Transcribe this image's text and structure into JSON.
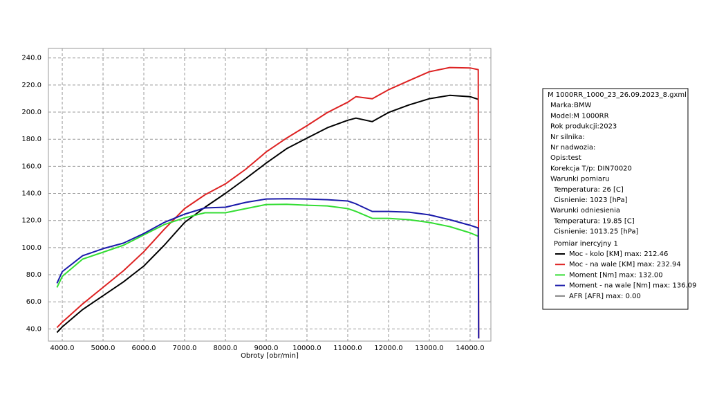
{
  "chart_data": {
    "type": "line",
    "x_label": "Obroty [obr/min]",
    "x": [
      3870,
      4000,
      4500,
      5000,
      5500,
      6000,
      6500,
      7000,
      7500,
      8000,
      8500,
      9000,
      9500,
      10000,
      10500,
      11000,
      11200,
      11600,
      12000,
      12500,
      13000,
      13500,
      14000,
      14200,
      14210
    ],
    "series": [
      {
        "name": "Moc - kolo [KM] max: 212.46",
        "color": "#000000",
        "values": [
          37.4,
          41.5,
          54.3,
          64.5,
          74.7,
          86.4,
          101.7,
          118.6,
          129.8,
          140,
          151,
          162.4,
          173,
          180.8,
          188.5,
          194,
          195.6,
          193,
          199.7,
          205.3,
          209.9,
          212.4,
          211.4,
          209.4,
          null
        ]
      },
      {
        "name": "Moc - na wale [KM] max: 232.94",
        "color": "#dd2222",
        "values": [
          41,
          45,
          58.4,
          70.6,
          82.9,
          97,
          113.5,
          128.8,
          139,
          147,
          157.9,
          170.6,
          180.8,
          190,
          199.7,
          207.3,
          211.4,
          209.9,
          216.5,
          223.2,
          229.8,
          232.9,
          232.6,
          231.4,
          33
        ]
      },
      {
        "name": "Moment [Nm] max: 132.00",
        "color": "#33dd33",
        "values": [
          70.6,
          78.8,
          91.5,
          96.6,
          101.7,
          109.4,
          117,
          122,
          125.7,
          125.7,
          128.8,
          131.8,
          132,
          131.3,
          130.8,
          128.8,
          126.7,
          121.6,
          121.6,
          120.6,
          118.6,
          115.5,
          110.9,
          108.4,
          null
        ]
      },
      {
        "name": "Moment - na wale [Nm] max: 136.09",
        "color": "#1a1aaa",
        "values": [
          73.7,
          82.3,
          94,
          99.2,
          103.3,
          110.4,
          118.6,
          124.7,
          129.3,
          129.8,
          133.4,
          135.9,
          136.1,
          135.9,
          135.4,
          134.4,
          132.3,
          126.7,
          126.7,
          126.2,
          124.2,
          120.6,
          116.5,
          114.5,
          33
        ]
      },
      {
        "name": "AFR [AFR] max: 0.00",
        "color": "#808080",
        "values": [
          null,
          null,
          null,
          null,
          null,
          null,
          null,
          null,
          null,
          null,
          null,
          null,
          null,
          null,
          null,
          null,
          null,
          null,
          null,
          null,
          null,
          null,
          null,
          null,
          null
        ]
      }
    ],
    "xlim": [
      3660,
      14510
    ],
    "ylim": [
      31,
      247
    ],
    "xticks": [
      {
        "value": 4000,
        "label": "4000.0"
      },
      {
        "value": 5000,
        "label": "5000.0"
      },
      {
        "value": 6000,
        "label": "6000.0"
      },
      {
        "value": 7000,
        "label": "7000.0"
      },
      {
        "value": 8000,
        "label": "8000.0"
      },
      {
        "value": 9000,
        "label": "9000.0"
      },
      {
        "value": 10000,
        "label": "10000.0"
      },
      {
        "value": 11000,
        "label": "11000.0"
      },
      {
        "value": 12000,
        "label": "12000.0"
      },
      {
        "value": 13000,
        "label": "13000.0"
      },
      {
        "value": 14000,
        "label": "14000.0"
      }
    ],
    "yticks": [
      {
        "value": 40,
        "label": "40.0"
      },
      {
        "value": 60,
        "label": "60.0"
      },
      {
        "value": 80,
        "label": "80.0"
      },
      {
        "value": 100,
        "label": "100.0"
      },
      {
        "value": 120,
        "label": "120.0"
      },
      {
        "value": 140,
        "label": "140.0"
      },
      {
        "value": 160,
        "label": "160.0"
      },
      {
        "value": 180,
        "label": "180.0"
      },
      {
        "value": 200,
        "label": "200.0"
      },
      {
        "value": 220,
        "label": "220.0"
      },
      {
        "value": 240,
        "label": "240.0"
      }
    ],
    "grid": true,
    "legend_info": {
      "file": "M 1000RR_1000_23_26.09.2023_8.gxml",
      "lines": [
        "Marka:BMW",
        "Model:M 1000RR",
        "Rok produkcji:2023",
        "Nr silnika:",
        "Nr nadwozia:",
        "Opis:test",
        "Korekcja T/p: DIN70020"
      ],
      "measurement_conditions": {
        "title": "Warunki pomiaru",
        "lines": [
          "Temperatura: 26 [C]",
          "Cisnienie: 1023 [hPa]"
        ]
      },
      "reference_conditions": {
        "title": "Warunki odniesienia",
        "lines": [
          "Temperatura: 19.85 [C]",
          "Cisnienie: 1013.25 [hPa]"
        ]
      },
      "series_group": "Pomiar inercyjny 1"
    }
  }
}
